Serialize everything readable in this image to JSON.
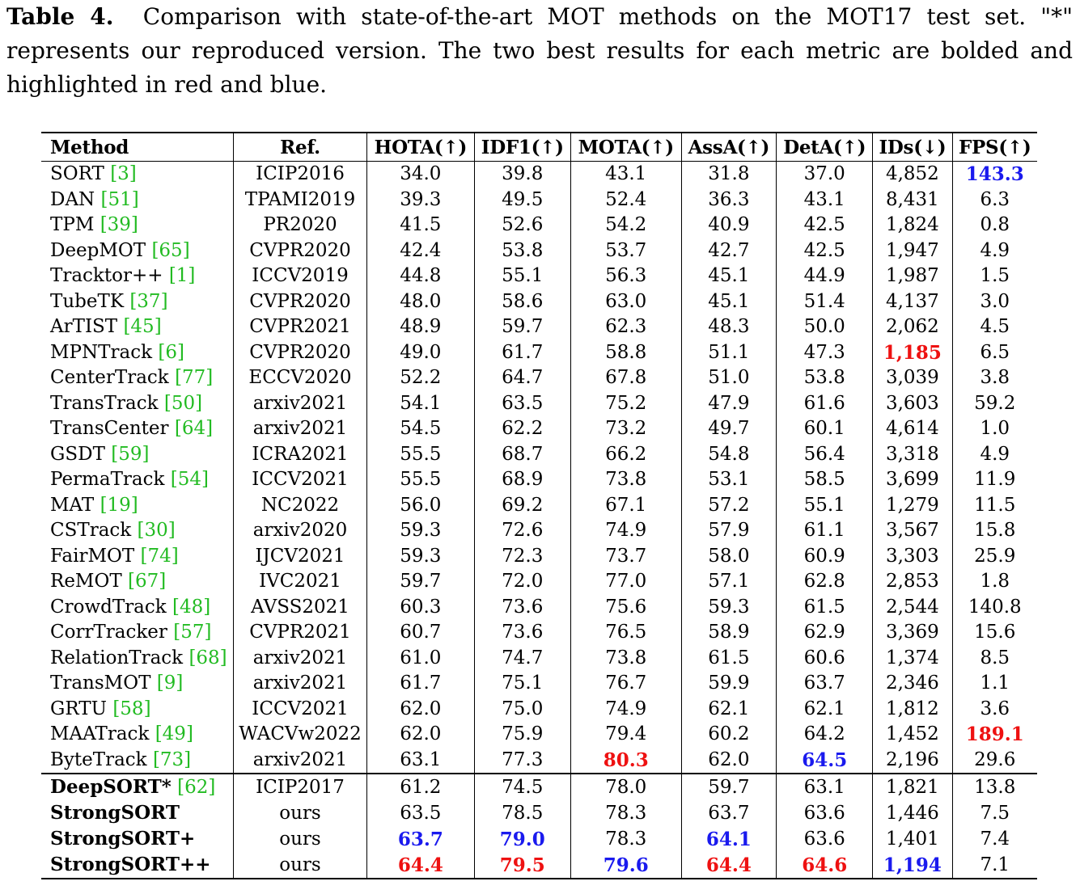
{
  "caption": {
    "label": "Table 4.",
    "text": "Comparison with state-of-the-art MOT methods on the MOT17 test set. \"*\" represents our reproduced version. The two best results for each metric are bolded and highlighted in red and blue."
  },
  "headers": [
    "Method",
    "Ref.",
    "HOTA(↑)",
    "IDF1(↑)",
    "MOTA(↑)",
    "AssA(↑)",
    "DetA(↑)",
    "IDs(↓)",
    "FPS(↑)"
  ],
  "colors": {
    "best": "#ee1111",
    "second": "#1a1aee",
    "citation": "#22bb22"
  },
  "rows_main": [
    {
      "method": "SORT",
      "cite": "[3]",
      "ref": "ICIP2016",
      "hota": "34.0",
      "idf1": "39.8",
      "mota": "43.1",
      "assa": "31.8",
      "deta": "37.0",
      "ids": "4,852",
      "fps": "143.3"
    },
    {
      "method": "DAN",
      "cite": "[51]",
      "ref": "TPAMI2019",
      "hota": "39.3",
      "idf1": "49.5",
      "mota": "52.4",
      "assa": "36.3",
      "deta": "43.1",
      "ids": "8,431",
      "fps": "6.3"
    },
    {
      "method": "TPM",
      "cite": "[39]",
      "ref": "PR2020",
      "hota": "41.5",
      "idf1": "52.6",
      "mota": "54.2",
      "assa": "40.9",
      "deta": "42.5",
      "ids": "1,824",
      "fps": "0.8"
    },
    {
      "method": "DeepMOT",
      "cite": "[65]",
      "ref": "CVPR2020",
      "hota": "42.4",
      "idf1": "53.8",
      "mota": "53.7",
      "assa": "42.7",
      "deta": "42.5",
      "ids": "1,947",
      "fps": "4.9"
    },
    {
      "method": "Tracktor++",
      "cite": "[1]",
      "ref": "ICCV2019",
      "hota": "44.8",
      "idf1": "55.1",
      "mota": "56.3",
      "assa": "45.1",
      "deta": "44.9",
      "ids": "1,987",
      "fps": "1.5"
    },
    {
      "method": "TubeTK",
      "cite": "[37]",
      "ref": "CVPR2020",
      "hota": "48.0",
      "idf1": "58.6",
      "mota": "63.0",
      "assa": "45.1",
      "deta": "51.4",
      "ids": "4,137",
      "fps": "3.0"
    },
    {
      "method": "ArTIST",
      "cite": "[45]",
      "ref": "CVPR2021",
      "hota": "48.9",
      "idf1": "59.7",
      "mota": "62.3",
      "assa": "48.3",
      "deta": "50.0",
      "ids": "2,062",
      "fps": "4.5"
    },
    {
      "method": "MPNTrack",
      "cite": "[6]",
      "ref": "CVPR2020",
      "hota": "49.0",
      "idf1": "61.7",
      "mota": "58.8",
      "assa": "51.1",
      "deta": "47.3",
      "ids": "1,185",
      "fps": "6.5"
    },
    {
      "method": "CenterTrack",
      "cite": "[77]",
      "ref": "ECCV2020",
      "hota": "52.2",
      "idf1": "64.7",
      "mota": "67.8",
      "assa": "51.0",
      "deta": "53.8",
      "ids": "3,039",
      "fps": "3.8"
    },
    {
      "method": "TransTrack",
      "cite": "[50]",
      "ref": "arxiv2021",
      "hota": "54.1",
      "idf1": "63.5",
      "mota": "75.2",
      "assa": "47.9",
      "deta": "61.6",
      "ids": "3,603",
      "fps": "59.2"
    },
    {
      "method": "TransCenter",
      "cite": "[64]",
      "ref": "arxiv2021",
      "hota": "54.5",
      "idf1": "62.2",
      "mota": "73.2",
      "assa": "49.7",
      "deta": "60.1",
      "ids": "4,614",
      "fps": "1.0"
    },
    {
      "method": "GSDT",
      "cite": "[59]",
      "ref": "ICRA2021",
      "hota": "55.5",
      "idf1": "68.7",
      "mota": "66.2",
      "assa": "54.8",
      "deta": "56.4",
      "ids": "3,318",
      "fps": "4.9"
    },
    {
      "method": "PermaTrack",
      "cite": "[54]",
      "ref": "ICCV2021",
      "hota": "55.5",
      "idf1": "68.9",
      "mota": "73.8",
      "assa": "53.1",
      "deta": "58.5",
      "ids": "3,699",
      "fps": "11.9"
    },
    {
      "method": "MAT",
      "cite": "[19]",
      "ref": "NC2022",
      "hota": "56.0",
      "idf1": "69.2",
      "mota": "67.1",
      "assa": "57.2",
      "deta": "55.1",
      "ids": "1,279",
      "fps": "11.5"
    },
    {
      "method": "CSTrack",
      "cite": "[30]",
      "ref": "arxiv2020",
      "hota": "59.3",
      "idf1": "72.6",
      "mota": "74.9",
      "assa": "57.9",
      "deta": "61.1",
      "ids": "3,567",
      "fps": "15.8"
    },
    {
      "method": "FairMOT",
      "cite": "[74]",
      "ref": "IJCV2021",
      "hota": "59.3",
      "idf1": "72.3",
      "mota": "73.7",
      "assa": "58.0",
      "deta": "60.9",
      "ids": "3,303",
      "fps": "25.9"
    },
    {
      "method": "ReMOT",
      "cite": "[67]",
      "ref": "IVC2021",
      "hota": "59.7",
      "idf1": "72.0",
      "mota": "77.0",
      "assa": "57.1",
      "deta": "62.8",
      "ids": "2,853",
      "fps": "1.8"
    },
    {
      "method": "CrowdTrack",
      "cite": "[48]",
      "ref": "AVSS2021",
      "hota": "60.3",
      "idf1": "73.6",
      "mota": "75.6",
      "assa": "59.3",
      "deta": "61.5",
      "ids": "2,544",
      "fps": "140.8"
    },
    {
      "method": "CorrTracker",
      "cite": "[57]",
      "ref": "CVPR2021",
      "hota": "60.7",
      "idf1": "73.6",
      "mota": "76.5",
      "assa": "58.9",
      "deta": "62.9",
      "ids": "3,369",
      "fps": "15.6"
    },
    {
      "method": "RelationTrack",
      "cite": "[68]",
      "ref": "arxiv2021",
      "hota": "61.0",
      "idf1": "74.7",
      "mota": "73.8",
      "assa": "61.5",
      "deta": "60.6",
      "ids": "1,374",
      "fps": "8.5"
    },
    {
      "method": "TransMOT",
      "cite": "[9]",
      "ref": "arxiv2021",
      "hota": "61.7",
      "idf1": "75.1",
      "mota": "76.7",
      "assa": "59.9",
      "deta": "63.7",
      "ids": "2,346",
      "fps": "1.1"
    },
    {
      "method": "GRTU",
      "cite": "[58]",
      "ref": "ICCV2021",
      "hota": "62.0",
      "idf1": "75.0",
      "mota": "74.9",
      "assa": "62.1",
      "deta": "62.1",
      "ids": "1,812",
      "fps": "3.6"
    },
    {
      "method": "MAATrack",
      "cite": "[49]",
      "ref": "WACVw2022",
      "hota": "62.0",
      "idf1": "75.9",
      "mota": "79.4",
      "assa": "60.2",
      "deta": "64.2",
      "ids": "1,452",
      "fps": "189.1"
    },
    {
      "method": "ByteTrack",
      "cite": "[73]",
      "ref": "arxiv2021",
      "hota": "63.1",
      "idf1": "77.3",
      "mota": "80.3",
      "assa": "62.0",
      "deta": "64.5",
      "ids": "2,196",
      "fps": "29.6"
    }
  ],
  "rows_ours": [
    {
      "method": "DeepSORT*",
      "cite": "[62]",
      "ref": "ICIP2017",
      "hota": "61.2",
      "idf1": "74.5",
      "mota": "78.0",
      "assa": "59.7",
      "deta": "63.1",
      "ids": "1,821",
      "fps": "13.8"
    },
    {
      "method": "StrongSORT",
      "cite": "",
      "ref": "ours",
      "hota": "63.5",
      "idf1": "78.5",
      "mota": "78.3",
      "assa": "63.7",
      "deta": "63.6",
      "ids": "1,446",
      "fps": "7.5"
    },
    {
      "method": "StrongSORT+",
      "cite": "",
      "ref": "ours",
      "hota": "63.7",
      "idf1": "79.0",
      "mota": "78.3",
      "assa": "64.1",
      "deta": "63.6",
      "ids": "1,401",
      "fps": "7.4"
    },
    {
      "method": "StrongSORT++",
      "cite": "",
      "ref": "ours",
      "hota": "64.4",
      "idf1": "79.5",
      "mota": "79.6",
      "assa": "64.4",
      "deta": "64.6",
      "ids": "1,194",
      "fps": "7.1"
    }
  ],
  "highlights": {
    "rows_main": {
      "0": {
        "fps": "blue"
      },
      "7": {
        "ids": "red"
      },
      "22": {
        "fps": "red"
      },
      "23": {
        "mota": "red",
        "deta": "blue"
      }
    },
    "rows_ours": {
      "2": {
        "hota": "blue",
        "idf1": "blue",
        "assa": "blue"
      },
      "3": {
        "hota": "red",
        "idf1": "red",
        "mota": "blue",
        "assa": "red",
        "deta": "red",
        "ids": "blue"
      }
    }
  }
}
